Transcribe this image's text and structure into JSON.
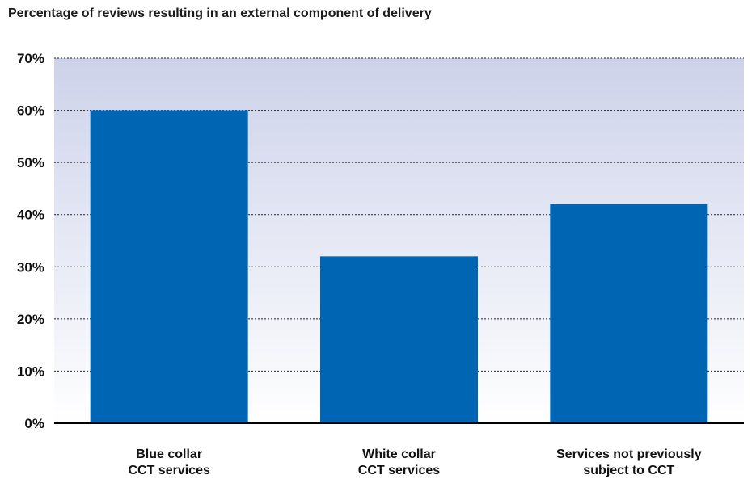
{
  "chart_data": {
    "type": "bar",
    "title": "Percentage of reviews resulting in an external component of delivery",
    "categories": [
      [
        "Blue collar",
        "CCT services"
      ],
      [
        "White collar",
        "CCT services"
      ],
      [
        "Services not previously",
        "subject to CCT"
      ]
    ],
    "values": [
      60,
      32,
      42
    ],
    "ylim": [
      0,
      70
    ],
    "yticks": [
      "0%",
      "10%",
      "20%",
      "30%",
      "40%",
      "50%",
      "60%",
      "70%"
    ],
    "grid": true,
    "bar_color": "#0066b3",
    "background_gradient": [
      "#cdd2ea",
      "#ffffff"
    ]
  }
}
